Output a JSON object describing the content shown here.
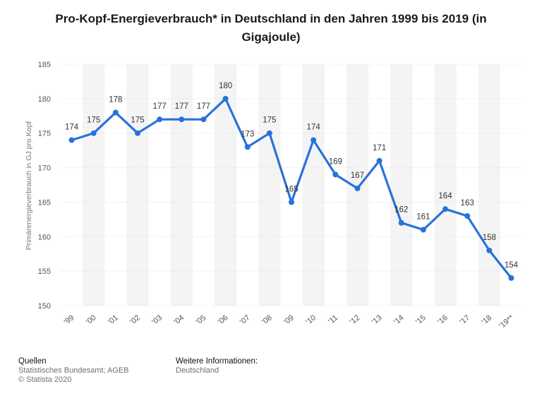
{
  "title": "Pro-Kopf-Energieverbrauch* in Deutschland in den Jahren 1999 bis 2019 (in Gigajoule)",
  "colors": {
    "line": "#2872d9",
    "band": "#f4f4f4",
    "grid": "#dcdcdc",
    "axis_text": "#555555"
  },
  "footer": {
    "sources_heading": "Quellen",
    "sources_line1": "Statistisches Bundesamt; AGEB",
    "sources_line2": "© Statista 2020",
    "info_heading": "Weitere Informationen:",
    "info_line1": "Deutschland"
  },
  "chart_data": {
    "type": "line",
    "title": "Pro-Kopf-Energieverbrauch* in Deutschland in den Jahren 1999 bis 2019 (in Gigajoule)",
    "ylabel": "Primärenergieverbrauch in GJ pro Kopf",
    "xlabel": "",
    "ylim": [
      150,
      185
    ],
    "yticks": [
      150,
      155,
      160,
      165,
      170,
      175,
      180,
      185
    ],
    "categories": [
      "'99",
      "'00",
      "'01",
      "'02",
      "'03",
      "'04",
      "'05",
      "'06",
      "'07",
      "'08",
      "'09",
      "'10",
      "'11",
      "'12",
      "'13",
      "'14",
      "'15",
      "'16",
      "'17",
      "'18",
      "'19**"
    ],
    "series": [
      {
        "name": "Pro-Kopf-Energieverbrauch",
        "values": [
          174,
          175,
          178,
          175,
          177,
          177,
          177,
          180,
          173,
          175,
          165,
          174,
          169,
          167,
          171,
          162,
          161,
          164,
          163,
          158,
          154
        ]
      }
    ]
  }
}
